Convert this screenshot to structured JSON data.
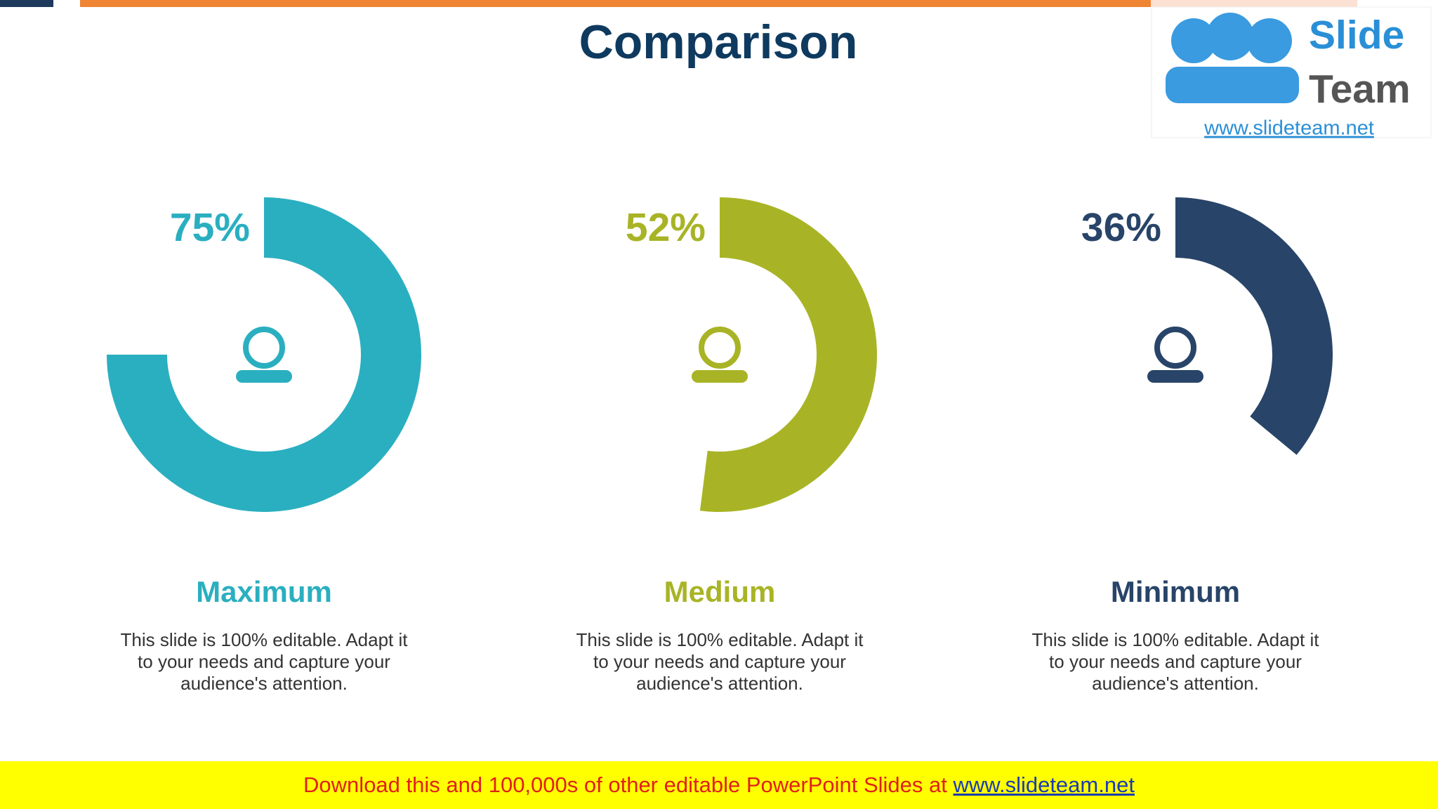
{
  "header": {
    "title": "Comparison"
  },
  "logo": {
    "name_top": "Slide",
    "name_bottom": "Team",
    "url": "www.slideteam.net"
  },
  "chart_data": [
    {
      "type": "donut",
      "title": "Maximum",
      "values": [
        75
      ],
      "value_labels": [
        "75%"
      ],
      "color": "#2aafc0",
      "description": "This slide is 100% editable. Adapt it to your needs and capture your audience's attention."
    },
    {
      "type": "donut",
      "title": "Medium",
      "values": [
        52
      ],
      "value_labels": [
        "52%"
      ],
      "color": "#a8b425",
      "description": "This slide is 100% editable. Adapt it to your needs and capture your audience's attention."
    },
    {
      "type": "donut",
      "title": "Minimum",
      "values": [
        36
      ],
      "value_labels": [
        "36%"
      ],
      "color": "#284468",
      "description": "This slide is 100% editable. Adapt it to your needs and capture your audience's attention."
    }
  ],
  "footer": {
    "text": "Download this and 100,000s of other editable PowerPoint Slides at",
    "link": "www.slideteam.net"
  }
}
